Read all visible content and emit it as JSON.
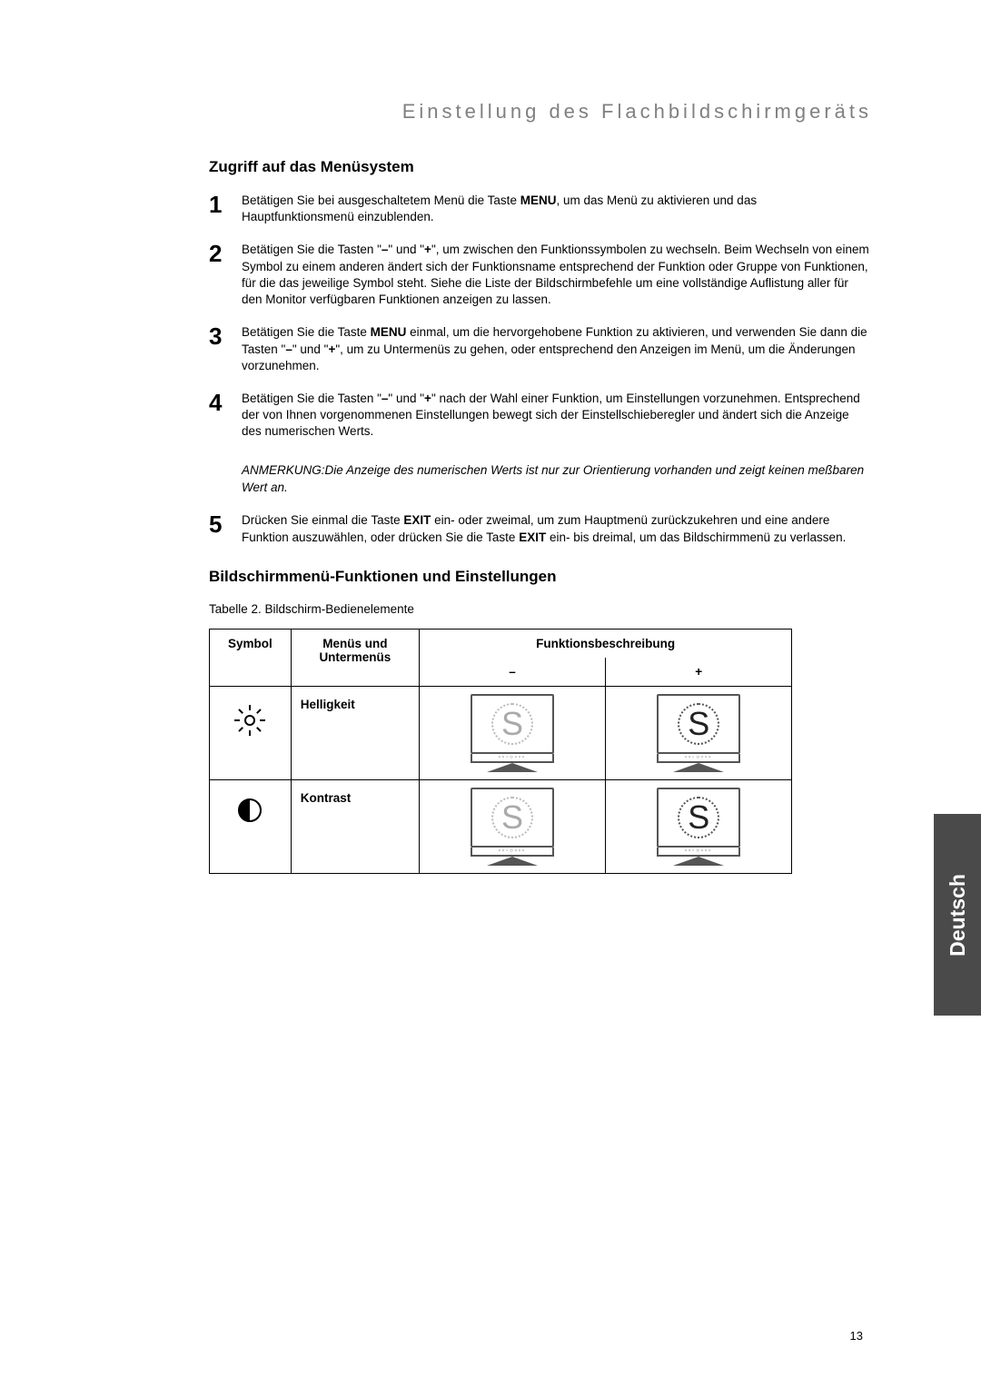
{
  "section_title": "Einstellung des Flachbildschirmgeräts",
  "menu_access_heading": "Zugriff auf das Menüsystem",
  "steps": [
    {
      "num": "1",
      "text_parts": [
        "Betätigen Sie bei ausgeschaltetem Menü die Taste ",
        {
          "b": "MENU"
        },
        ", um das Menü zu aktivieren und das Hauptfunktionsmenü einzublenden."
      ]
    },
    {
      "num": "2",
      "text_parts": [
        "Betätigen Sie die Tasten \"",
        {
          "b": "–"
        },
        "\" und \"",
        {
          "b": "+"
        },
        "\", um zwischen den Funktionssymbolen zu wechseln. Beim Wechseln von einem Symbol zu einem anderen ändert sich der Funktionsname entsprechend der Funktion oder Gruppe von Funktionen, für die das jeweilige Symbol steht. Siehe die Liste der Bildschirmbefehle um eine vollständige Auflistung aller für den Monitor verfügbaren Funktionen anzeigen zu lassen."
      ]
    },
    {
      "num": "3",
      "text_parts": [
        "Betätigen Sie die Taste ",
        {
          "b": "MENU"
        },
        " einmal, um die hervorgehobene Funktion zu aktivieren, und verwenden Sie dann die Tasten \"",
        {
          "b": "–"
        },
        "\" und \"",
        {
          "b": "+"
        },
        "\", um zu Untermenüs zu gehen, oder entsprechend den Anzeigen im Menü, um die Änderungen vorzunehmen."
      ]
    },
    {
      "num": "4",
      "text_parts": [
        "Betätigen Sie die Tasten \"",
        {
          "b": "–"
        },
        "\" und \"",
        {
          "b": "+"
        },
        "\" nach der Wahl einer Funktion, um Einstellungen vorzunehmen. Entsprechend der von Ihnen vorgenommenen Einstellungen bewegt sich der Einstellschieberegler und ändert sich die Anzeige des numerischen Werts."
      ]
    }
  ],
  "note_label": "ANMERKUNG:",
  "note_text": "Die Anzeige des numerischen Werts ist nur zur Orientierung vorhanden und zeigt keinen meßbaren Wert an.",
  "step5": {
    "num": "5",
    "text_parts": [
      "Drücken Sie einmal die Taste ",
      {
        "b": "EXIT"
      },
      " ein- oder zweimal, um zum Hauptmenü zurückzukehren und eine andere Funktion auszuwählen, oder drücken Sie die Taste ",
      {
        "b": "EXIT"
      },
      " ein- bis dreimal, um das Bildschirmmenü zu verlassen."
    ]
  },
  "functions_heading": "Bildschirmmenü-Funktionen und Einstellungen",
  "table_caption": "Tabelle 2.  Bildschirm-Bedienelemente",
  "table_headers": {
    "symbol": "Symbol",
    "menus": "Menüs und Untermenüs",
    "func": "Funktionsbeschreibung",
    "minus": "–",
    "plus": "+"
  },
  "table_rows": [
    {
      "icon": "brightness",
      "menu": "Helligkeit",
      "minus_variant": "faint",
      "plus_variant": "bold"
    },
    {
      "icon": "contrast",
      "menu": "Kontrast",
      "minus_variant": "faint",
      "plus_variant": "bold"
    }
  ],
  "monitor_buttons": "▫▫◦○▫▫▫",
  "side_tab": "Deutsch",
  "page_number": "13",
  "colors": {
    "title_gray": "#808080",
    "tab_bg": "#4a4a4a",
    "tab_text": "#ffffff",
    "monitor_line": "#555555",
    "faint": "#aaaaaa"
  }
}
